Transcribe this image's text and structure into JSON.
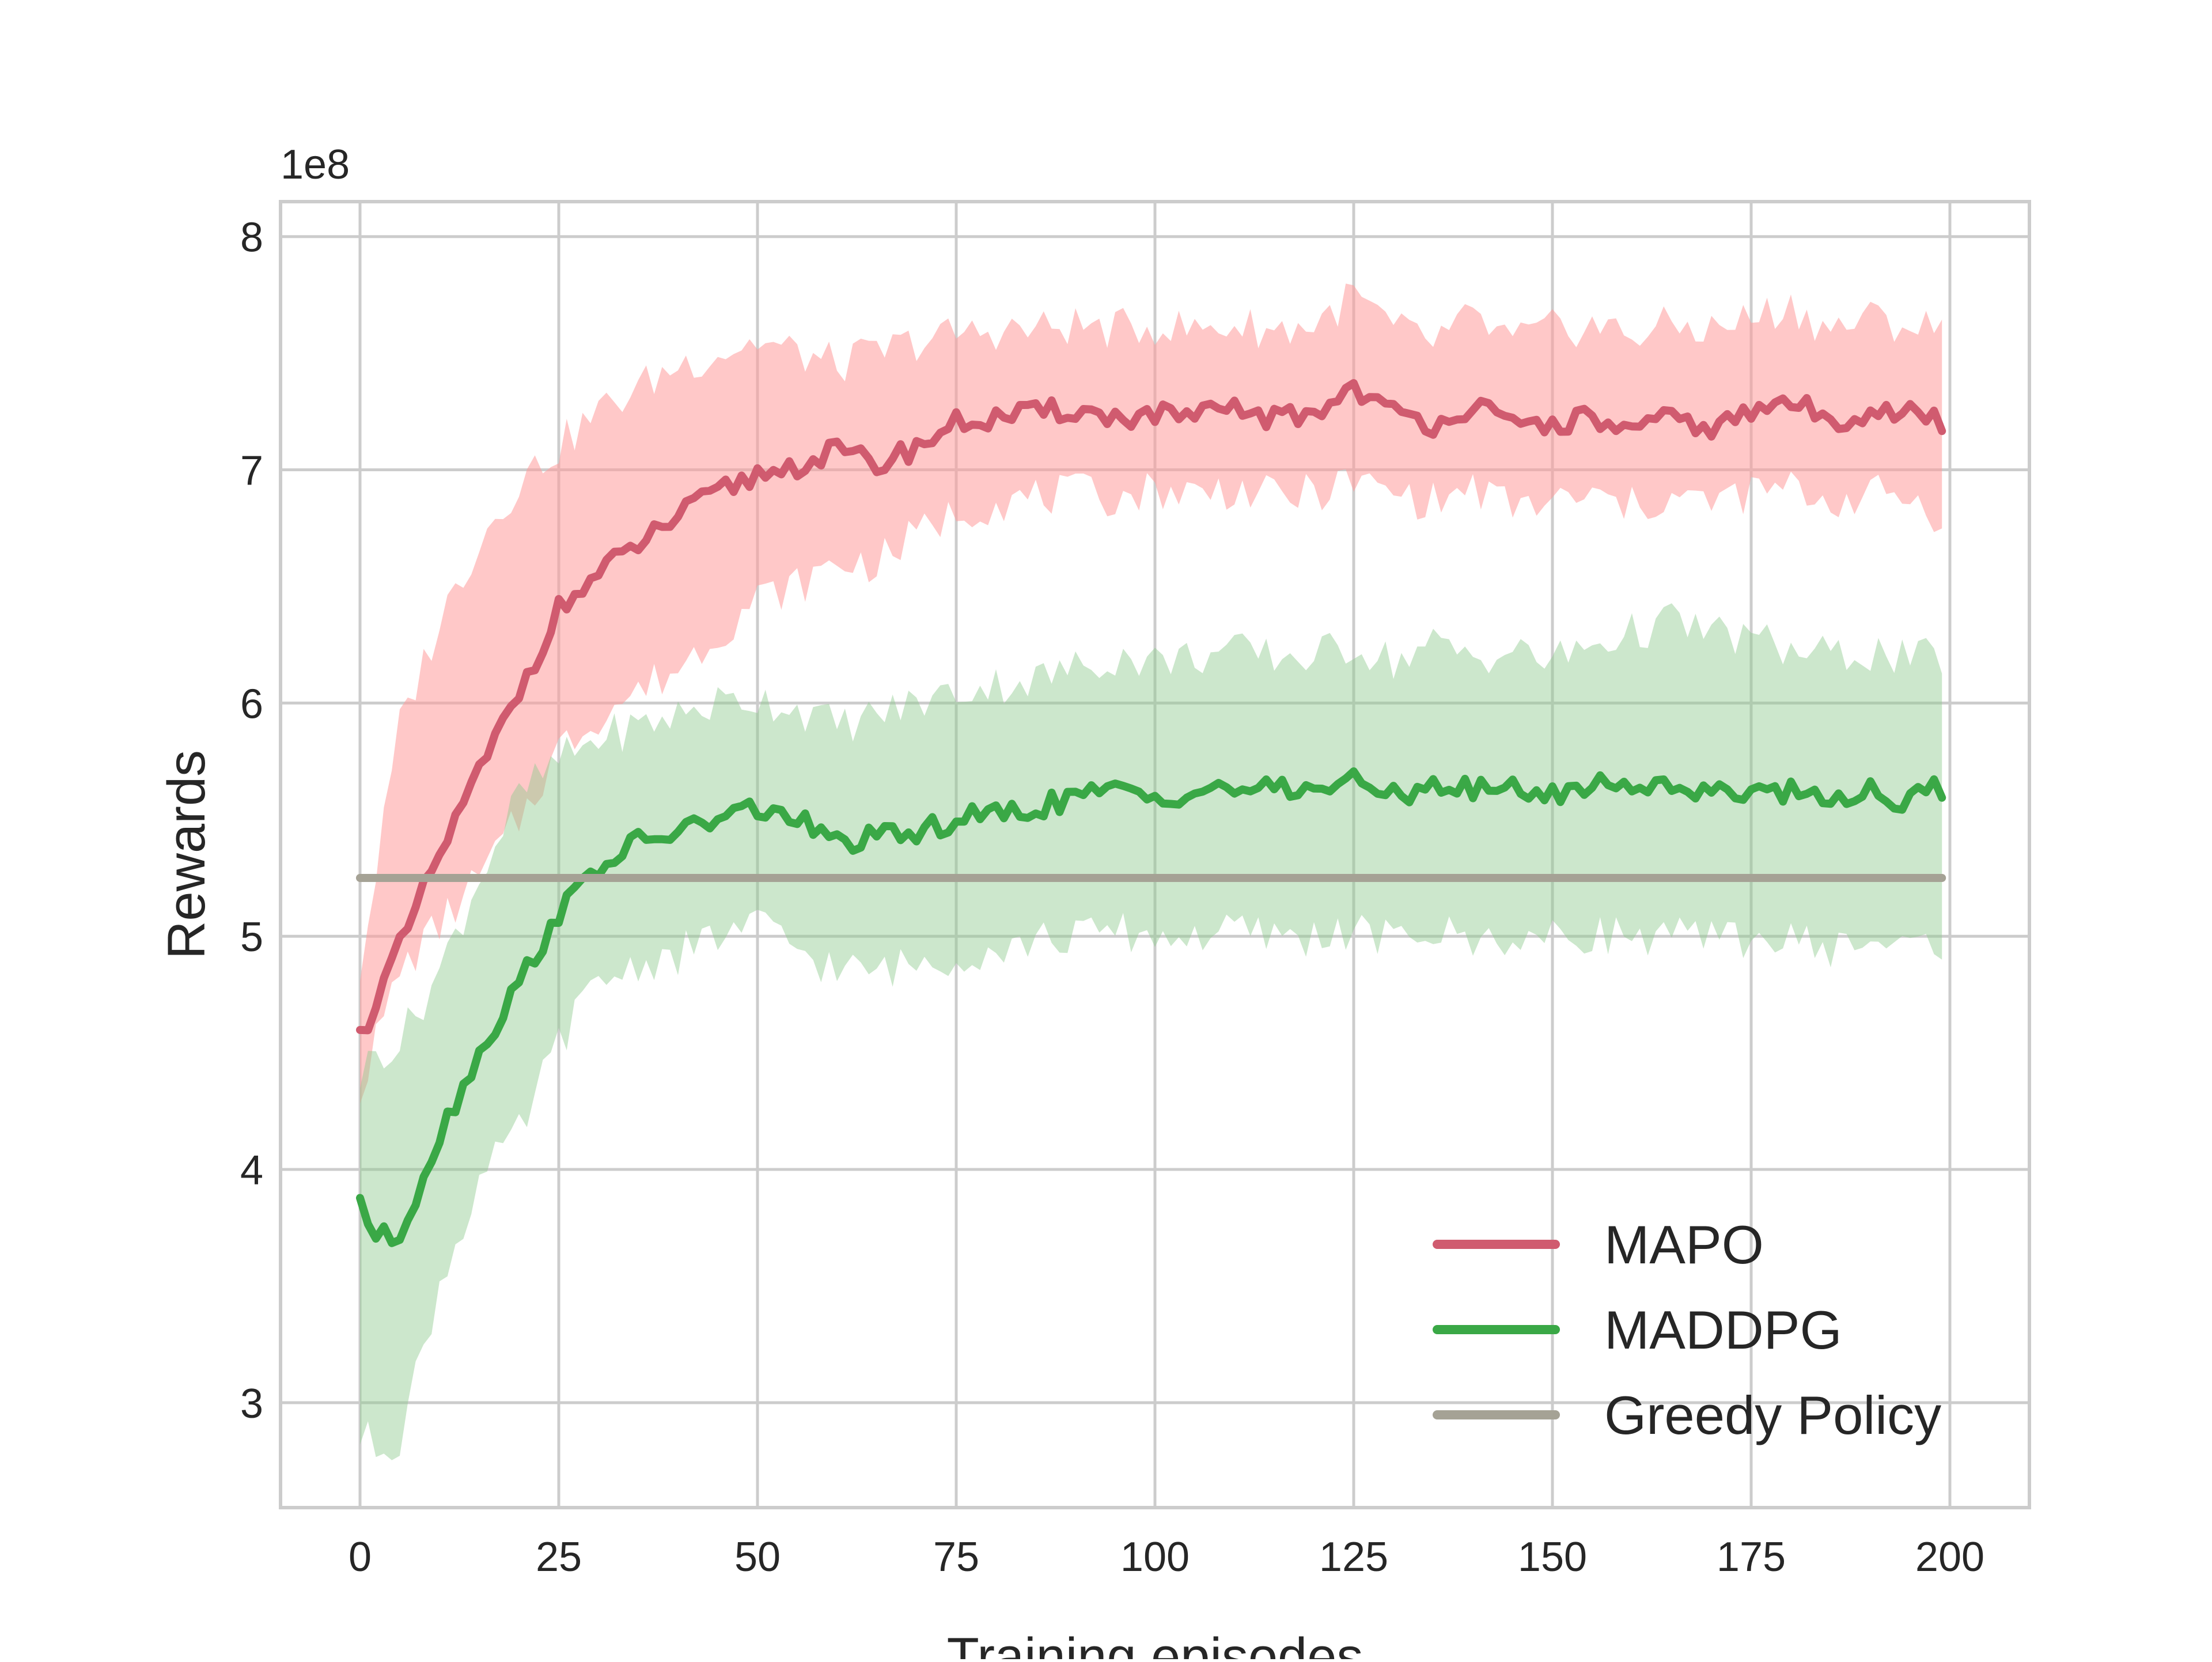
{
  "chart_data": {
    "type": "line",
    "title": "",
    "xlabel": "Training episodes",
    "ylabel": "Rewards",
    "y_scale_label": "1e8",
    "xlim": [
      -10,
      210
    ],
    "ylim": [
      2.55,
      8.15
    ],
    "xticks": [
      0,
      25,
      50,
      75,
      100,
      125,
      150,
      175,
      200
    ],
    "yticks": [
      3,
      4,
      5,
      6,
      7,
      8
    ],
    "xtick_labels": [
      "0",
      "25",
      "50",
      "75",
      "100",
      "125",
      "150",
      "175",
      "200"
    ],
    "ytick_labels": [
      "3",
      "4",
      "5",
      "6",
      "7",
      "8"
    ],
    "grid": true,
    "legend_position": "lower-right",
    "colors": {
      "grid": "#cccccc",
      "frame": "#cccccc",
      "text": "#262626",
      "background": "#ffffff"
    },
    "series": [
      {
        "name": "MAPO",
        "color": "#d05b6f",
        "band_color": "#ff9a9a",
        "band_opacity": 0.55,
        "x": [
          0,
          5,
          10,
          15,
          20,
          25,
          30,
          35,
          40,
          45,
          50,
          55,
          60,
          65,
          70,
          75,
          80,
          85,
          90,
          95,
          100,
          105,
          110,
          115,
          120,
          125,
          130,
          135,
          140,
          145,
          150,
          155,
          160,
          165,
          170,
          175,
          180,
          185,
          190,
          195,
          199
        ],
        "mean": [
          4.57,
          4.95,
          5.35,
          5.7,
          6.05,
          6.4,
          6.55,
          6.68,
          6.8,
          6.9,
          6.98,
          7.02,
          7.08,
          7.02,
          7.1,
          7.2,
          7.22,
          7.24,
          7.26,
          7.22,
          7.24,
          7.22,
          7.26,
          7.22,
          7.24,
          7.36,
          7.24,
          7.2,
          7.28,
          7.18,
          7.2,
          7.22,
          7.16,
          7.22,
          7.18,
          7.24,
          7.3,
          7.2,
          7.26,
          7.24,
          7.2
        ],
        "upper": [
          4.85,
          5.9,
          6.35,
          6.7,
          6.95,
          7.1,
          7.25,
          7.35,
          7.45,
          7.5,
          7.55,
          7.5,
          7.45,
          7.5,
          7.55,
          7.58,
          7.6,
          7.6,
          7.62,
          7.6,
          7.62,
          7.6,
          7.62,
          7.6,
          7.62,
          7.75,
          7.6,
          7.55,
          7.65,
          7.55,
          7.6,
          7.62,
          7.58,
          7.62,
          7.6,
          7.65,
          7.7,
          7.6,
          7.65,
          7.62,
          7.6
        ],
        "lower": [
          4.35,
          4.85,
          5.05,
          5.25,
          5.5,
          5.8,
          5.95,
          6.05,
          6.15,
          6.3,
          6.45,
          6.5,
          6.6,
          6.6,
          6.72,
          6.82,
          6.86,
          6.88,
          6.9,
          6.88,
          6.92,
          6.9,
          6.92,
          6.88,
          6.9,
          6.95,
          6.9,
          6.86,
          6.92,
          6.84,
          6.86,
          6.88,
          6.84,
          6.88,
          6.86,
          6.9,
          6.92,
          6.86,
          6.9,
          6.88,
          6.8
        ]
      },
      {
        "name": "MADDPG",
        "color": "#3aa846",
        "band_color": "#8fca8f",
        "band_opacity": 0.45,
        "x": [
          0,
          2,
          5,
          10,
          15,
          20,
          25,
          30,
          35,
          40,
          45,
          50,
          55,
          60,
          65,
          70,
          75,
          80,
          85,
          90,
          95,
          100,
          105,
          110,
          115,
          120,
          125,
          130,
          135,
          140,
          145,
          150,
          155,
          160,
          165,
          170,
          175,
          180,
          185,
          190,
          195,
          199
        ],
        "mean": [
          3.88,
          3.7,
          3.72,
          4.15,
          4.5,
          4.8,
          5.1,
          5.3,
          5.4,
          5.45,
          5.5,
          5.55,
          5.5,
          5.4,
          5.42,
          5.44,
          5.5,
          5.52,
          5.55,
          5.6,
          5.62,
          5.6,
          5.62,
          5.64,
          5.62,
          5.64,
          5.66,
          5.6,
          5.66,
          5.62,
          5.64,
          5.6,
          5.66,
          5.64,
          5.66,
          5.6,
          5.64,
          5.62,
          5.6,
          5.62,
          5.58,
          5.64
        ],
        "upper": [
          4.4,
          4.5,
          4.55,
          4.85,
          5.25,
          5.6,
          5.75,
          5.85,
          5.9,
          5.95,
          6.0,
          6.02,
          5.98,
          5.9,
          5.95,
          6.0,
          6.05,
          6.08,
          6.1,
          6.15,
          6.2,
          6.18,
          6.2,
          6.22,
          6.2,
          6.2,
          6.25,
          6.18,
          6.25,
          6.2,
          6.22,
          6.18,
          6.25,
          6.3,
          6.35,
          6.3,
          6.28,
          6.22,
          6.2,
          6.22,
          6.18,
          6.2
        ],
        "lower": [
          2.85,
          2.82,
          2.85,
          3.5,
          3.95,
          4.15,
          4.55,
          4.8,
          4.88,
          4.92,
          5.0,
          5.05,
          4.95,
          4.85,
          4.85,
          4.88,
          4.92,
          4.95,
          4.98,
          5.0,
          5.02,
          5.0,
          5.0,
          5.02,
          5.0,
          5.0,
          5.02,
          4.98,
          5.02,
          4.98,
          5.0,
          4.98,
          5.02,
          5.0,
          5.0,
          4.98,
          5.0,
          4.98,
          4.95,
          4.98,
          4.95,
          4.98
        ]
      },
      {
        "name": "Greedy Policy",
        "color": "#a5a295",
        "x": [
          0,
          199
        ],
        "mean": [
          5.25,
          5.25
        ]
      }
    ]
  }
}
